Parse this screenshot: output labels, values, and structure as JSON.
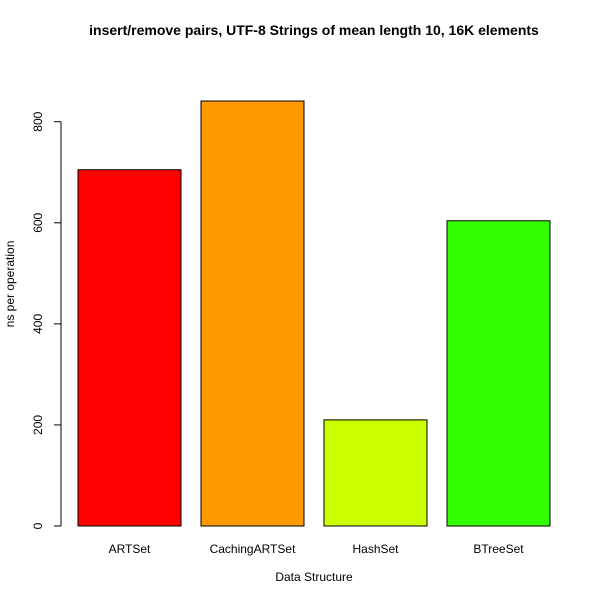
{
  "chart_data": {
    "type": "bar",
    "title": "insert/remove pairs, UTF-8 Strings of mean length 10, 16K elements",
    "xlabel": "Data Structure",
    "ylabel": "ns per operation",
    "categories": [
      "ARTSet",
      "CachingARTSet",
      "HashSet",
      "BTreeSet"
    ],
    "values": [
      705,
      841,
      210,
      604
    ],
    "colors": [
      "#FF0000",
      "#FF9900",
      "#CCFF00",
      "#33FF00"
    ],
    "yticks": [
      0,
      200,
      400,
      600,
      800
    ],
    "ylim": [
      0,
      841
    ],
    "grid": false,
    "legend": "none"
  }
}
